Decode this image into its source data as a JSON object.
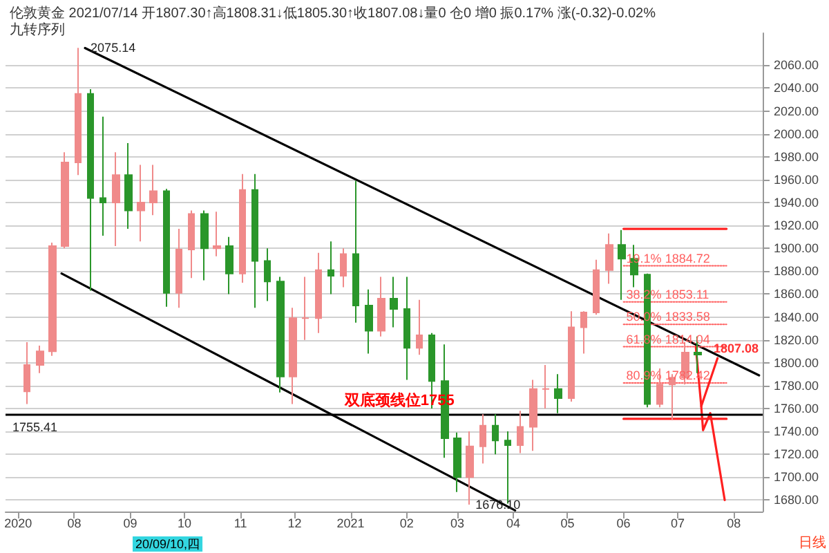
{
  "chart_data": {
    "type": "candlestick",
    "title": "伦敦黄金 2021/07/14 开1807.30↑高1808.31↓低1805.30↑收1807.08↓量0 仓0 增0 振0.17% 涨(-0.32)-0.02%",
    "subtitle": "九转序列",
    "xlim": [
      "2020-06-24",
      "2021-08-17"
    ],
    "xticks": [
      {
        "value": "2020-07-01",
        "label": "2020"
      },
      {
        "value": "2020-08-01",
        "label": "08"
      },
      {
        "value": "2020-09-01",
        "label": "09"
      },
      {
        "value": "2020-10-01",
        "label": "10"
      },
      {
        "value": "2020-11-01",
        "label": "11"
      },
      {
        "value": "2020-12-01",
        "label": "12"
      },
      {
        "value": "2021-01-01",
        "label": "2021"
      },
      {
        "value": "2021-02-01",
        "label": "02"
      },
      {
        "value": "2021-03-01",
        "label": "03"
      },
      {
        "value": "2021-04-01",
        "label": "04"
      },
      {
        "value": "2021-05-01",
        "label": "05"
      },
      {
        "value": "2021-06-01",
        "label": "06"
      },
      {
        "value": "2021-07-01",
        "label": "07"
      },
      {
        "value": "2021-08-01",
        "label": "08"
      }
    ],
    "ylim": [
      1670,
      2088
    ],
    "yticks": [
      {
        "value": 1680,
        "label": "1680.00"
      },
      {
        "value": 1700,
        "label": "1700.00"
      },
      {
        "value": 1720,
        "label": "1720.00"
      },
      {
        "value": 1740,
        "label": "1740.00"
      },
      {
        "value": 1760,
        "label": "1760.00"
      },
      {
        "value": 1780,
        "label": "1780.00"
      },
      {
        "value": 1800,
        "label": "1800.00"
      },
      {
        "value": 1820,
        "label": "1820.00"
      },
      {
        "value": 1840,
        "label": "1840.00"
      },
      {
        "value": 1860,
        "label": "1860.00"
      },
      {
        "value": 1880,
        "label": "1880.00"
      },
      {
        "value": 1900,
        "label": "1900.00"
      },
      {
        "value": 1920,
        "label": "1920.00"
      },
      {
        "value": 1940,
        "label": "1940.00"
      },
      {
        "value": 1960,
        "label": "1960.00"
      },
      {
        "value": 1980,
        "label": "1980.00"
      },
      {
        "value": 2000,
        "label": "2000.00"
      },
      {
        "value": 2020,
        "label": "2020.00"
      },
      {
        "value": 2040,
        "label": "2040.00"
      },
      {
        "value": 2060,
        "label": "2060.00"
      }
    ],
    "grid": "y",
    "marker": "none",
    "series": [
      {
        "type": "candlestick",
        "x": [
          "2020-07-06",
          "2020-07-13",
          "2020-07-20",
          "2020-07-27",
          "2020-08-03",
          "2020-08-10",
          "2020-08-17",
          "2020-08-24",
          "2020-08-31",
          "2020-09-07",
          "2020-09-14",
          "2020-09-21",
          "2020-09-28",
          "2020-10-05",
          "2020-10-12",
          "2020-10-19",
          "2020-10-26",
          "2020-11-02",
          "2020-11-09",
          "2020-11-16",
          "2020-11-23",
          "2020-11-30",
          "2020-12-07",
          "2020-12-14",
          "2020-12-21",
          "2020-12-28",
          "2021-01-04",
          "2021-01-11",
          "2021-01-18",
          "2021-01-25",
          "2021-02-01",
          "2021-02-08",
          "2021-02-15",
          "2021-02-22",
          "2021-03-01",
          "2021-03-08",
          "2021-03-15",
          "2021-03-22",
          "2021-03-29",
          "2021-04-05",
          "2021-04-12",
          "2021-04-19",
          "2021-04-26",
          "2021-05-03",
          "2021-05-10",
          "2021-05-17",
          "2021-05-24",
          "2021-05-31",
          "2021-06-07",
          "2021-06-14",
          "2021-06-21",
          "2021-06-28",
          "2021-07-05",
          "2021-07-12"
        ],
        "ohlc": [
          [
            1775,
            1818,
            1764,
            1798
          ],
          [
            1798,
            1815,
            1791,
            1810
          ],
          [
            1810,
            1905,
            1806,
            1902
          ],
          [
            1902,
            1984,
            1900,
            1975
          ],
          [
            1975,
            2075.14,
            1964,
            2035
          ],
          [
            2035,
            2039,
            1863,
            1944
          ],
          [
            1944,
            2015,
            1911,
            1940
          ],
          [
            1940,
            1984,
            1902,
            1964
          ],
          [
            1964,
            1992,
            1917,
            1933
          ],
          [
            1933,
            1973,
            1906,
            1940
          ],
          [
            1940,
            1973,
            1929,
            1950
          ],
          [
            1950,
            1952,
            1849,
            1861
          ],
          [
            1861,
            1917,
            1848,
            1899
          ],
          [
            1899,
            1933,
            1874,
            1930
          ],
          [
            1930,
            1933,
            1872,
            1900
          ],
          [
            1900,
            1932,
            1893,
            1902
          ],
          [
            1902,
            1910,
            1860,
            1878
          ],
          [
            1878,
            1965,
            1870,
            1951
          ],
          [
            1951,
            1965,
            1848,
            1889
          ],
          [
            1889,
            1900,
            1854,
            1871
          ],
          [
            1871,
            1875,
            1774,
            1788
          ],
          [
            1788,
            1848,
            1764,
            1839
          ],
          [
            1839,
            1875,
            1820,
            1839
          ],
          [
            1839,
            1896,
            1826,
            1881
          ],
          [
            1881,
            1906,
            1860,
            1876
          ],
          [
            1876,
            1900,
            1866,
            1895
          ],
          [
            1895,
            1959,
            1835,
            1850
          ],
          [
            1850,
            1864,
            1808,
            1828
          ],
          [
            1828,
            1875,
            1823,
            1856
          ],
          [
            1856,
            1875,
            1831,
            1847
          ],
          [
            1847,
            1875,
            1785,
            1813
          ],
          [
            1813,
            1855,
            1807,
            1824
          ],
          [
            1824,
            1826,
            1760,
            1784
          ],
          [
            1784,
            1816,
            1717,
            1734
          ],
          [
            1734,
            1739,
            1687,
            1700
          ],
          [
            1700,
            1740,
            1676.1,
            1727
          ],
          [
            1727,
            1755,
            1712,
            1745
          ],
          [
            1745,
            1755,
            1720,
            1732
          ],
          [
            1732,
            1740,
            1677,
            1728
          ],
          [
            1728,
            1758,
            1721,
            1744
          ],
          [
            1744,
            1785,
            1723,
            1777
          ],
          [
            1777,
            1798,
            1760,
            1777
          ],
          [
            1777,
            1790,
            1756,
            1769
          ],
          [
            1769,
            1845,
            1766,
            1831
          ],
          [
            1831,
            1845,
            1808,
            1844
          ],
          [
            1844,
            1890,
            1842,
            1881
          ],
          [
            1881,
            1913,
            1869,
            1903
          ],
          [
            1903,
            1916,
            1855,
            1891
          ],
          [
            1891,
            1903,
            1866,
            1877
          ],
          [
            1877,
            1878,
            1761,
            1764
          ],
          [
            1764,
            1795,
            1761,
            1781
          ],
          [
            1781,
            1790,
            1750,
            1787
          ],
          [
            1787,
            1818,
            1781,
            1809
          ],
          [
            1809,
            1823,
            1791,
            1807.08
          ]
        ]
      },
      {
        "type": "line",
        "color": "#000000",
        "line_style": "solid",
        "x": [
          "2020-08-07",
          "2021-08-15"
        ],
        "values": [
          2075,
          1789
        ]
      },
      {
        "type": "line",
        "color": "#000000",
        "line_style": "solid",
        "x": [
          "2020-07-25",
          "2021-04-02"
        ],
        "values": [
          1878,
          1671
        ]
      },
      {
        "type": "line",
        "color": "#ff2020",
        "line_style": "solid",
        "x": [
          "2021-06-01",
          "2021-07-28"
        ],
        "values": [
          1917,
          1917
        ]
      },
      {
        "type": "line",
        "color": "#ff2020",
        "line_style": "solid",
        "x": [
          "2021-06-01",
          "2021-07-28"
        ],
        "values": [
          1751,
          1751
        ]
      },
      {
        "type": "line",
        "color": "#ff6060",
        "line_style": "dotted",
        "x": [
          "2021-06-01",
          "2021-07-28"
        ],
        "values": [
          1884.72,
          1884.72
        ]
      },
      {
        "type": "line",
        "color": "#ff6060",
        "line_style": "dotted",
        "x": [
          "2021-06-01",
          "2021-07-28"
        ],
        "values": [
          1853.11,
          1853.11
        ]
      },
      {
        "type": "line",
        "color": "#ff6060",
        "line_style": "dotted",
        "x": [
          "2021-06-01",
          "2021-07-28"
        ],
        "values": [
          1833.58,
          1833.58
        ]
      },
      {
        "type": "line",
        "color": "#ff6060",
        "line_style": "dotted",
        "x": [
          "2021-06-01",
          "2021-07-28"
        ],
        "values": [
          1814.04,
          1814.04
        ]
      },
      {
        "type": "line",
        "color": "#ff6060",
        "line_style": "dotted",
        "x": [
          "2021-06-01",
          "2021-07-28"
        ],
        "values": [
          1782.42,
          1782.42
        ]
      },
      {
        "type": "line",
        "color": "#ff2020",
        "line_style": "solid",
        "x": [
          "2021-07-11",
          "2021-07-14",
          "2021-07-23"
        ],
        "values": [
          1814,
          1762,
          1804
        ]
      },
      {
        "type": "line",
        "color": "#ff2020",
        "line_style": "solid",
        "x": [
          "2021-07-14",
          "2021-07-15",
          "2021-07-19",
          "2021-07-27"
        ],
        "values": [
          1762,
          1741,
          1756,
          1680
        ]
      }
    ],
    "ref_lines": [
      {
        "axis": "y",
        "value": 1755.41,
        "label": "1755.41",
        "color": "#000000",
        "line_style": "solid"
      }
    ],
    "annotations": [
      {
        "text": "2075.14",
        "x": "2020-08-07",
        "y": 2075.14
      },
      {
        "text": "1676.10",
        "x": "2021-03-08",
        "y": 1676.1
      },
      {
        "text": "双底颈线位1755",
        "x": "2021-01-28",
        "y": 1755
      },
      {
        "text": "19.1% 1884.72",
        "x": "2021-06-01",
        "y": 1884.72
      },
      {
        "text": "38.2% 1853.11",
        "x": "2021-06-01",
        "y": 1853.11
      },
      {
        "text": "50.0% 1833.58",
        "x": "2021-06-01",
        "y": 1833.58
      },
      {
        "text": "61.8% 1814.04",
        "x": "2021-06-01",
        "y": 1814.04
      },
      {
        "text": "80.9% 1782.42",
        "x": "2021-06-01",
        "y": 1782.42
      },
      "1807.08",
      "20/09/10,四",
      "日线"
    ]
  }
}
